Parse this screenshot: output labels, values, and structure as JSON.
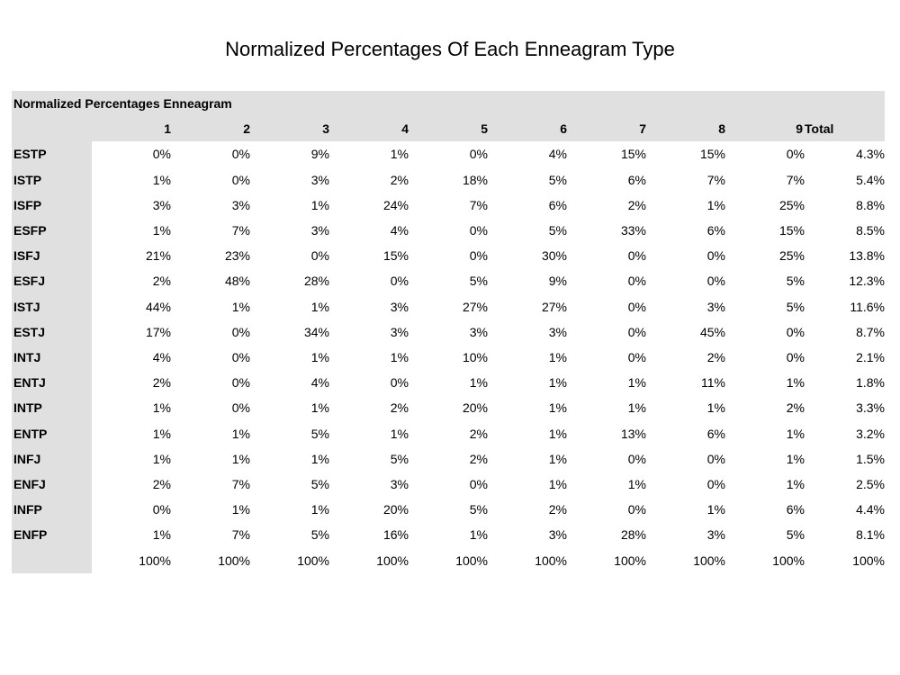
{
  "chart_data": {
    "type": "table",
    "title": "Normalized Percentages Of Each Enneagram Type",
    "table_title": "Normalized Percentages Enneagram",
    "columns": [
      "1",
      "2",
      "3",
      "4",
      "5",
      "6",
      "7",
      "8",
      "9",
      "Total"
    ],
    "rows": [
      {
        "label": "ESTP",
        "values": [
          "0%",
          "0%",
          "9%",
          "1%",
          "0%",
          "4%",
          "15%",
          "15%",
          "0%",
          "4.3%"
        ]
      },
      {
        "label": "ISTP",
        "values": [
          "1%",
          "0%",
          "3%",
          "2%",
          "18%",
          "5%",
          "6%",
          "7%",
          "7%",
          "5.4%"
        ]
      },
      {
        "label": "ISFP",
        "values": [
          "3%",
          "3%",
          "1%",
          "24%",
          "7%",
          "6%",
          "2%",
          "1%",
          "25%",
          "8.8%"
        ]
      },
      {
        "label": "ESFP",
        "values": [
          "1%",
          "7%",
          "3%",
          "4%",
          "0%",
          "5%",
          "33%",
          "6%",
          "15%",
          "8.5%"
        ]
      },
      {
        "label": "ISFJ",
        "values": [
          "21%",
          "23%",
          "0%",
          "15%",
          "0%",
          "30%",
          "0%",
          "0%",
          "25%",
          "13.8%"
        ]
      },
      {
        "label": "ESFJ",
        "values": [
          "2%",
          "48%",
          "28%",
          "0%",
          "5%",
          "9%",
          "0%",
          "0%",
          "5%",
          "12.3%"
        ]
      },
      {
        "label": "ISTJ",
        "values": [
          "44%",
          "1%",
          "1%",
          "3%",
          "27%",
          "27%",
          "0%",
          "3%",
          "5%",
          "11.6%"
        ]
      },
      {
        "label": "ESTJ",
        "values": [
          "17%",
          "0%",
          "34%",
          "3%",
          "3%",
          "3%",
          "0%",
          "45%",
          "0%",
          "8.7%"
        ]
      },
      {
        "label": "INTJ",
        "values": [
          "4%",
          "0%",
          "1%",
          "1%",
          "10%",
          "1%",
          "0%",
          "2%",
          "0%",
          "2.1%"
        ]
      },
      {
        "label": "ENTJ",
        "values": [
          "2%",
          "0%",
          "4%",
          "0%",
          "1%",
          "1%",
          "1%",
          "11%",
          "1%",
          "1.8%"
        ]
      },
      {
        "label": "INTP",
        "values": [
          "1%",
          "0%",
          "1%",
          "2%",
          "20%",
          "1%",
          "1%",
          "1%",
          "2%",
          "3.3%"
        ]
      },
      {
        "label": "ENTP",
        "values": [
          "1%",
          "1%",
          "5%",
          "1%",
          "2%",
          "1%",
          "13%",
          "6%",
          "1%",
          "3.2%"
        ]
      },
      {
        "label": "INFJ",
        "values": [
          "1%",
          "1%",
          "1%",
          "5%",
          "2%",
          "1%",
          "0%",
          "0%",
          "1%",
          "1.5%"
        ]
      },
      {
        "label": "ENFJ",
        "values": [
          "2%",
          "7%",
          "5%",
          "3%",
          "0%",
          "1%",
          "1%",
          "0%",
          "1%",
          "2.5%"
        ]
      },
      {
        "label": "INFP",
        "values": [
          "0%",
          "1%",
          "1%",
          "20%",
          "5%",
          "2%",
          "0%",
          "1%",
          "6%",
          "4.4%"
        ]
      },
      {
        "label": "ENFP",
        "values": [
          "1%",
          "7%",
          "5%",
          "16%",
          "1%",
          "3%",
          "28%",
          "3%",
          "5%",
          "8.1%"
        ]
      },
      {
        "label": "",
        "values": [
          "100%",
          "100%",
          "100%",
          "100%",
          "100%",
          "100%",
          "100%",
          "100%",
          "100%",
          "100%"
        ]
      }
    ]
  }
}
